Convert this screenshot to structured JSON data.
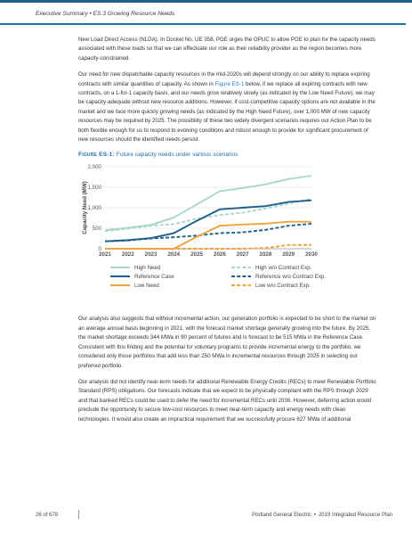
{
  "header": {
    "section": "Executive Summary",
    "separator": "•",
    "subsection": "ES.3 Growing Resource Needs"
  },
  "paragraphs": {
    "p1": "New Load Direct Access (NLDA). In Docket No. UE 358, PGE urges the OPUC to allow PGE to plan for the capacity needs associated with these loads so that we can effectuate our role as their reliability provider as the region becomes more capacity-constrained.",
    "p2_a": "Our need for new dispatchable capacity resources in the mid-2020s will depend strongly on our ability to replace expiring contracts with similar quantities of capacity. As shown in ",
    "p2_link": "Figure ES-1",
    "p2_b": " below, if we replace all expiring contracts with new contracts, on a 1-for-1 capacity basis, and our needs grow relatively slowly (as indicated by the Low Need Future), we may be capacity-adequate without new resource additions. However, if cost-competitive capacity options are not available in the market and we face more quickly growing needs (as indicated by the High Need Future), over 1,000 MW of new capacity resources may be required by 2025. The possibility of these two widely divergent scenarios requires our Action Plan to be both flexible enough for us to respond to evolving conditions and robust enough to provide for significant procurement of new resources should the identified needs persist.",
    "p3": "Our analysis also suggests that without incremental action, our generation portfolio is expected to be short to the market on an average annual basis beginning in 2021, with the forecast market shortage generally growing into the future. By 2025, the market shortage exceeds 344 MWa in 90 percent of futures and is forecast to be 515 MWa in the Reference Case. Consistent with this finding and the potential for voluntary programs to provide incremental energy to the portfolio, we considered only those portfolios that add less than 250 MWa in incremental resources through 2025 in selecting our preferred portfolio.",
    "p4": "Our analysis did not identify near-term needs for additional Renewable Energy Credits (RECs) to meet Renewable Portfolio Standard (RPS) obligations. Our forecasts indicate that we expect to be physically compliant with the RPS through 2029 and that banked RECs could be used to defer the need for incremental RECs until 2036. However, deferring action would preclude the opportunity to secure low-cost resources to meet near-term capacity and energy needs with clean technologies. It would also create an impractical requirement that we successfully procure 627 MWa of additional"
  },
  "figure": {
    "label": "Figure ES-1",
    "colon": ":",
    "caption": " Future capacity needs under various scenarios"
  },
  "chart_data": {
    "type": "line",
    "title": "",
    "xlabel": "",
    "ylabel": "Capacity Need (MW)",
    "x": [
      2021,
      2022,
      2023,
      2024,
      2025,
      2026,
      2027,
      2028,
      2029,
      2030
    ],
    "x_tick_labels": [
      "2021",
      "2022",
      "2023",
      "2024",
      "2025",
      "2026",
      "2027",
      "2028",
      "2029",
      "2030"
    ],
    "ylim": [
      0,
      2000
    ],
    "y_ticks": [
      0,
      500,
      1000,
      1500,
      2000
    ],
    "y_tick_labels": [
      "0",
      "500",
      "1,000",
      "1,500",
      "2,000"
    ],
    "grid": "horizontal",
    "legend_placement": "bottom",
    "series": [
      {
        "name": "High Need",
        "color": "#a8d8c4",
        "dash": false,
        "values": [
          450,
          510,
          580,
          760,
          1080,
          1400,
          1480,
          1570,
          1700,
          1780
        ]
      },
      {
        "name": "High w/o Contract Exp.",
        "color": "#a8d8c4",
        "dash": true,
        "values": [
          430,
          490,
          560,
          600,
          730,
          820,
          880,
          980,
          1100,
          1220
        ]
      },
      {
        "name": "Reference Case",
        "color": "#1f5f8b",
        "dash": false,
        "values": [
          180,
          210,
          260,
          380,
          680,
          960,
          1000,
          1040,
          1140,
          1180
        ]
      },
      {
        "name": "Reference w/o Contract Exp.",
        "color": "#1f5f8b",
        "dash": true,
        "values": [
          180,
          200,
          250,
          280,
          320,
          380,
          400,
          460,
          560,
          610
        ]
      },
      {
        "name": "Low Need",
        "color": "#f0a33a",
        "dash": false,
        "values": [
          0,
          0,
          0,
          0,
          290,
          560,
          590,
          610,
          660,
          660
        ]
      },
      {
        "name": "Low w/o Contract Exp.",
        "color": "#f0a33a",
        "dash": true,
        "values": [
          0,
          0,
          0,
          0,
          0,
          0,
          0,
          20,
          90,
          90
        ]
      }
    ]
  },
  "footer": {
    "page": "26 of 678",
    "org": "Portland General Electric",
    "dot": "•",
    "doc": "2019 Integrated Resource Plan"
  }
}
